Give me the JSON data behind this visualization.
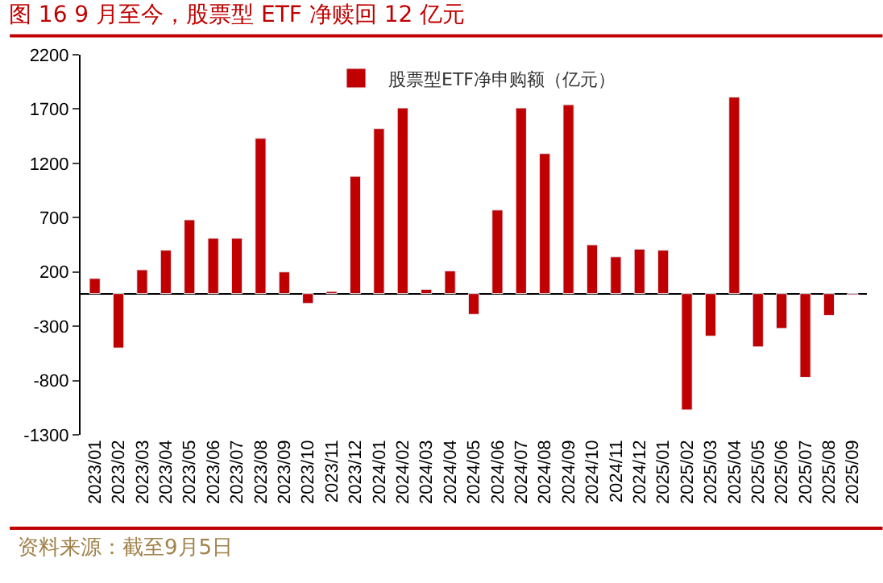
{
  "chart_data": {
    "type": "bar",
    "title": "图 16 9 月至今，股票型 ETF 净赎回 12 亿元",
    "categories": [
      "2023/01",
      "2023/02",
      "2023/03",
      "2023/04",
      "2023/05",
      "2023/06",
      "2023/07",
      "2023/08",
      "2023/09",
      "2023/10",
      "2023/11",
      "2023/12",
      "2024/01",
      "2024/02",
      "2024/03",
      "2024/04",
      "2024/05",
      "2024/06",
      "2024/07",
      "2024/08",
      "2024/09",
      "2024/10",
      "2024/11",
      "2024/12",
      "2025/01",
      "2025/02",
      "2025/03",
      "2025/04",
      "2025/05",
      "2025/06",
      "2025/07",
      "2025/08",
      "2025/09"
    ],
    "series": [
      {
        "name": "股票型ETF净申购额（亿元）",
        "color": "#c00000",
        "values": [
          140,
          -500,
          220,
          400,
          680,
          510,
          510,
          1430,
          200,
          -90,
          20,
          1080,
          1520,
          1710,
          40,
          210,
          -190,
          770,
          1710,
          1290,
          1740,
          450,
          340,
          410,
          400,
          -1070,
          -390,
          1810,
          -490,
          -320,
          -770,
          -200,
          -10
        ]
      }
    ],
    "ylim": [
      -1300,
      2200
    ],
    "yticks": [
      -1300,
      -800,
      -300,
      200,
      700,
      1200,
      1700,
      2200
    ],
    "legend": "top",
    "annotations": [
      "资料来源：截至9月5日"
    ]
  }
}
